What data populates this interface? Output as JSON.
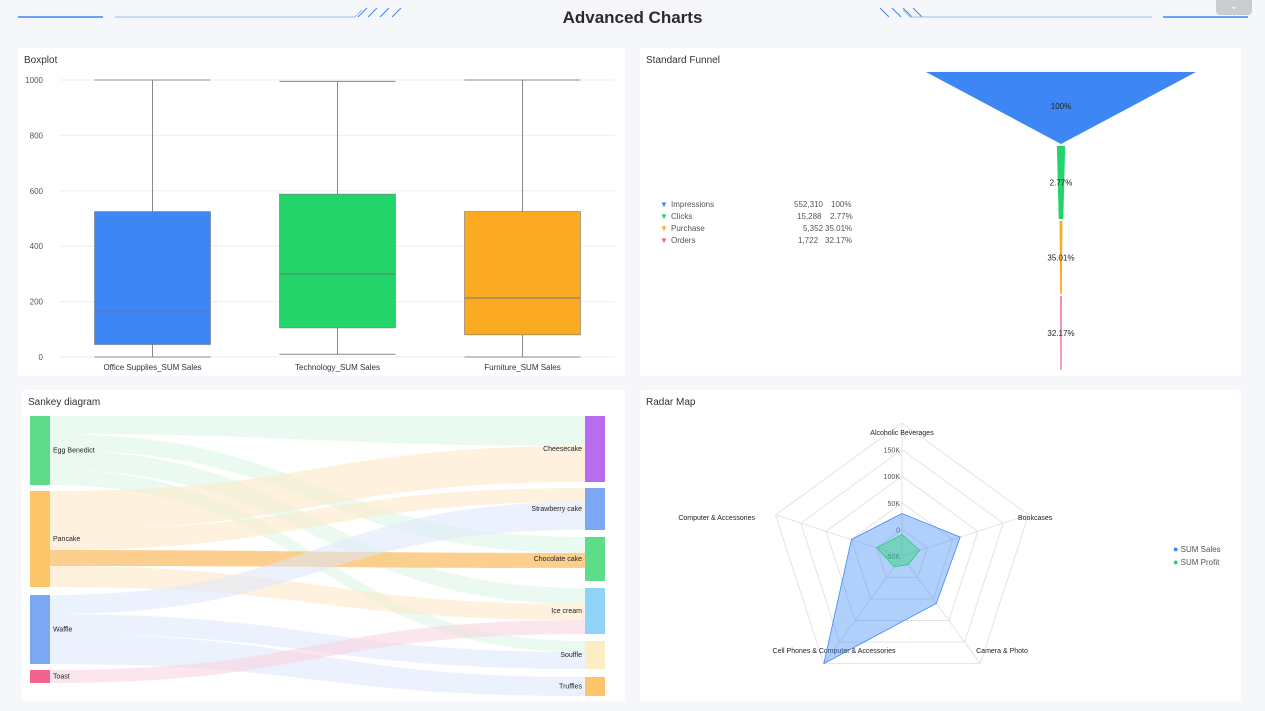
{
  "page": {
    "title": "Advanced Charts",
    "collapse_icon": "chevron-down-icon"
  },
  "boxplot": {
    "title": "Boxplot",
    "chart_data": {
      "type": "boxplot",
      "ylim": [
        0,
        1000
      ],
      "yticks": [
        0,
        200,
        400,
        600,
        800,
        1000
      ],
      "series": [
        {
          "name": "Office Supplies_SUM Sales",
          "min": 0,
          "q1": 45,
          "median": 165,
          "q3": 525,
          "max": 1000,
          "color": "#3d87f5"
        },
        {
          "name": "Technology_SUM Sales",
          "min": 10,
          "q1": 105,
          "median": 300,
          "q3": 588,
          "max": 995,
          "color": "#22d46a"
        },
        {
          "name": "Furniture_SUM Sales",
          "min": 0,
          "q1": 80,
          "median": 213,
          "q3": 525,
          "max": 1000,
          "color": "#fcaa22"
        }
      ]
    }
  },
  "funnel": {
    "title": "Standard Funnel",
    "chart_data": {
      "type": "funnel",
      "stages": [
        {
          "name": "Impressions",
          "value": "552,310",
          "pct": "100%",
          "ratio": 1.0,
          "color": "#3d87f5"
        },
        {
          "name": "Clicks",
          "value": "15,288",
          "pct": "2.77%",
          "ratio": 0.0277,
          "color": "#22d46a"
        },
        {
          "name": "Purchase",
          "value": "5,352",
          "pct": "35.01%",
          "ratio": 0.0097,
          "color": "#fcaa22"
        },
        {
          "name": "Orders",
          "value": "1,722",
          "pct": "32.17%",
          "ratio": 0.0031,
          "color": "#f4638f"
        }
      ]
    }
  },
  "sankey": {
    "title": "Sankey diagram",
    "chart_data": {
      "type": "sankey",
      "sources": [
        {
          "name": "Egg Benedict",
          "color": "#5fdc8a"
        },
        {
          "name": "Pancake",
          "color": "#fdc56a"
        },
        {
          "name": "Waffle",
          "color": "#7ba7f5"
        },
        {
          "name": "Toast",
          "color": "#f4638f"
        }
      ],
      "targets": [
        {
          "name": "Cheesecake",
          "color": "#b96cf0"
        },
        {
          "name": "Strawberry cake",
          "color": "#7ba7f5"
        },
        {
          "name": "Chocolate cake",
          "color": "#5fdc8a"
        },
        {
          "name": "Ice cream",
          "color": "#8fd3f8"
        },
        {
          "name": "Souffle",
          "color": "#fdedc4"
        },
        {
          "name": "Truffles",
          "color": "#fdc56a"
        }
      ]
    }
  },
  "radar": {
    "title": "Radar Map",
    "chart_data": {
      "type": "radar",
      "axes": [
        "Alcoholic Beverages",
        "Bookcases",
        "Camera & Photo",
        "Cell Phones & Computer & Accessories",
        "Computer & Accessories"
      ],
      "ticks": [
        "-50K",
        "0",
        "50K",
        "100K",
        "150K"
      ],
      "range": [
        -50000,
        200000
      ],
      "series": [
        {
          "name": "SUM Sales",
          "color": "#3d87f5",
          "values": [
            30000,
            65000,
            60000,
            200000,
            50000
          ]
        },
        {
          "name": "SUM Profit",
          "color": "#22d46a",
          "values": [
            -10000,
            -15000,
            -30000,
            -25000,
            0
          ]
        }
      ]
    }
  }
}
